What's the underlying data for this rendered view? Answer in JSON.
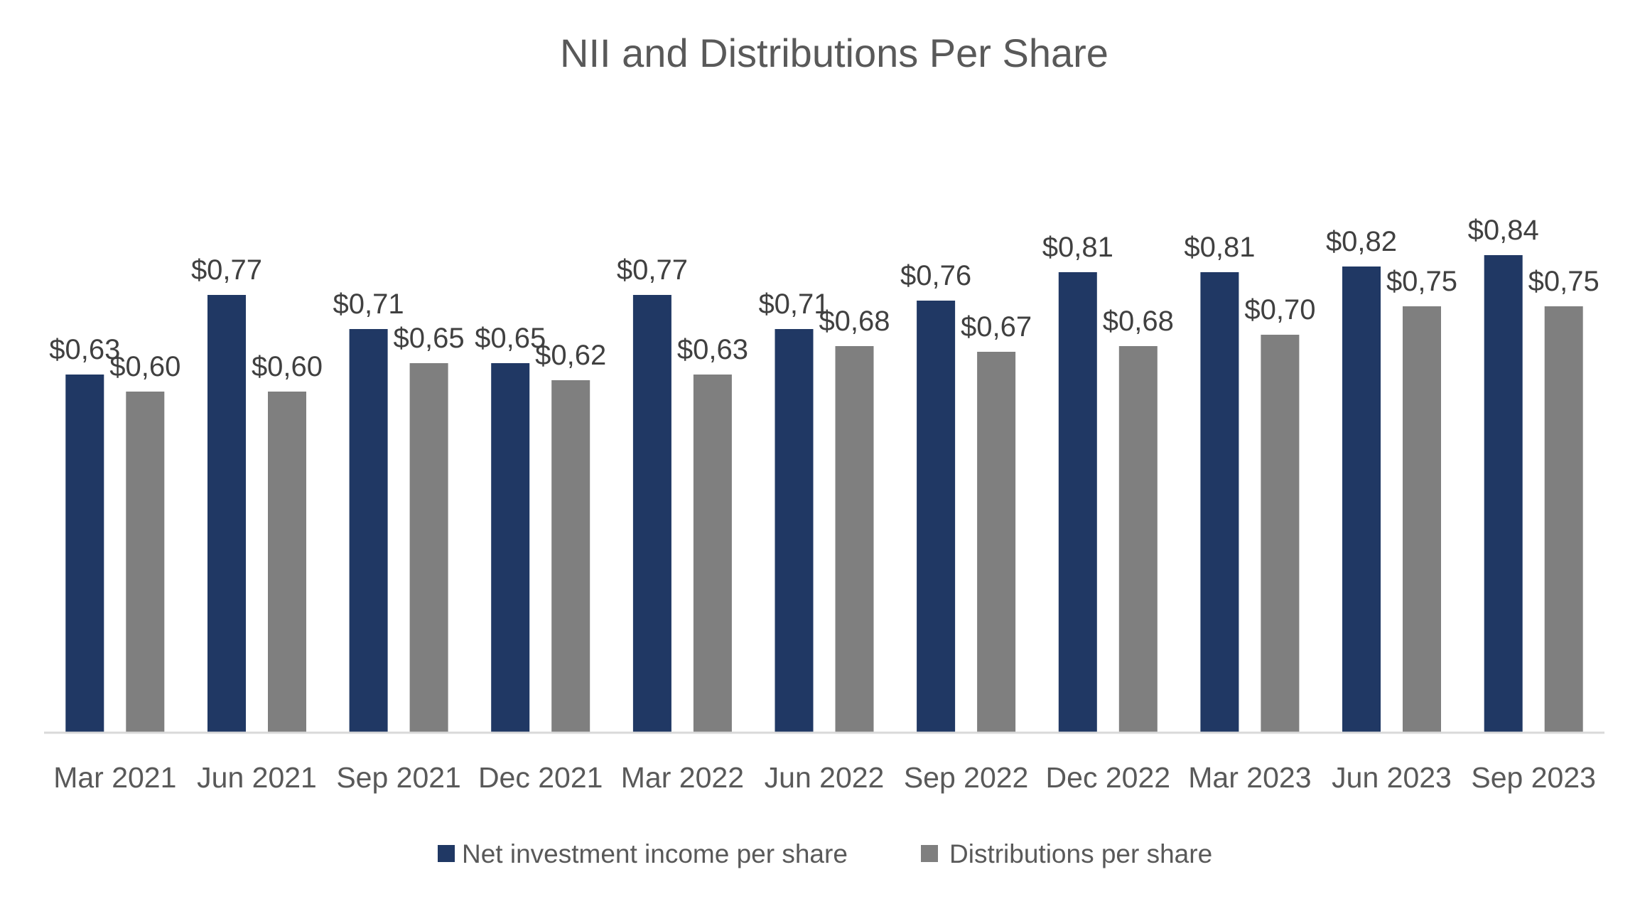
{
  "chart_data": {
    "type": "bar",
    "title": "NII and Distributions Per Share",
    "xlabel": "",
    "ylabel": "",
    "categories": [
      "Mar 2021",
      "Jun 2021",
      "Sep 2021",
      "Dec 2021",
      "Mar 2022",
      "Jun 2022",
      "Sep 2022",
      "Dec 2022",
      "Mar 2023",
      "Jun 2023",
      "Sep 2023"
    ],
    "series": [
      {
        "name": "Net investment income per share",
        "color": "#203864",
        "values": [
          0.63,
          0.77,
          0.71,
          0.65,
          0.77,
          0.71,
          0.76,
          0.81,
          0.81,
          0.82,
          0.84
        ],
        "labels": [
          "$0,63",
          "$0,77",
          "$0,71",
          "$0,65",
          "$0,77",
          "$0,71",
          "$0,76",
          "$0,81",
          "$0,81",
          "$0,82",
          "$0,84"
        ]
      },
      {
        "name": "Distributions per share",
        "color": "#7f7f7f",
        "values": [
          0.6,
          0.6,
          0.65,
          0.62,
          0.63,
          0.68,
          0.67,
          0.68,
          0.7,
          0.75,
          0.75
        ],
        "labels": [
          "$0,60",
          "$0,60",
          "$0,65",
          "$0,62",
          "$0,63",
          "$0,68",
          "$0,67",
          "$0,68",
          "$0,70",
          "$0,75",
          "$0,75"
        ]
      }
    ],
    "ylim": [
      0,
      1.0
    ],
    "grid": false,
    "legend": "bottom",
    "axis_color": "#d9d9d9"
  }
}
